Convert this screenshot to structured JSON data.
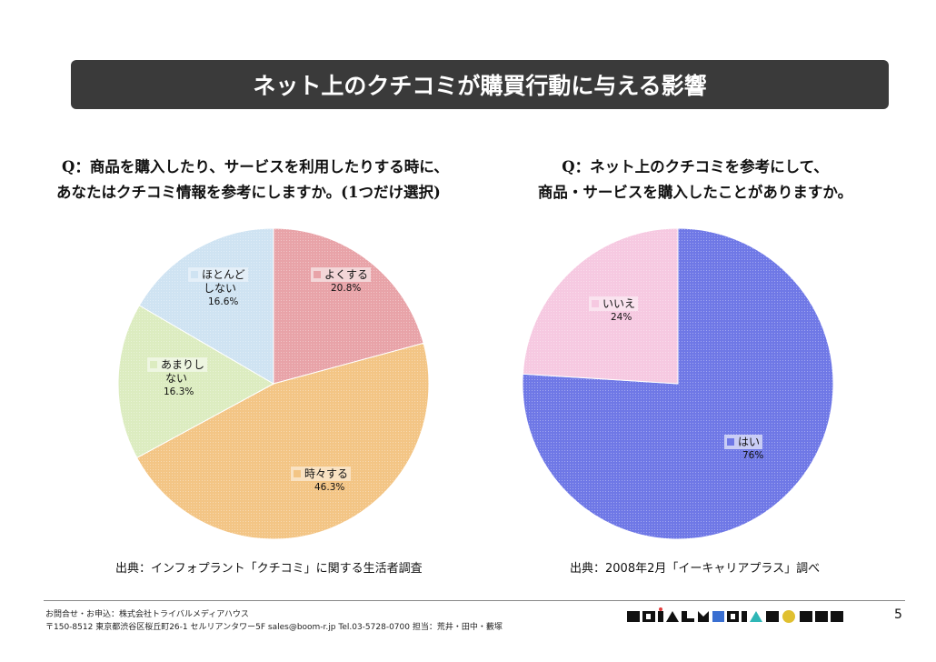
{
  "header": {
    "title": "ネット上のクチコミが購買行動に与える影響"
  },
  "questions": {
    "q1_line1": "Q：商品を購入したり、サービスを利用したりする時に、",
    "q1_line2": "あなたはクチコミ情報を参考にしますか。(1つだけ選択)",
    "q2_line1": "Q：ネット上のクチコミを参考にして、",
    "q2_line2": "商品・サービスを購入したことがありますか。"
  },
  "chart_data": [
    {
      "type": "pie",
      "title": "",
      "slices": [
        {
          "label": "よくする",
          "value": 20.8,
          "label_text": "20.8%",
          "color": "#e8a3a8"
        },
        {
          "label": "時々する",
          "value": 46.3,
          "label_text": "46.3%",
          "color": "#f3c585"
        },
        {
          "label": "あまりしない",
          "value": 16.3,
          "label_text": "16.3%",
          "color": "#dcecc0"
        },
        {
          "label": "ほとんどしない",
          "value": 16.6,
          "label_text": "16.6%",
          "color": "#cfe3f2"
        }
      ],
      "start": "12 o'clock",
      "direction": "clockwise"
    },
    {
      "type": "pie",
      "title": "",
      "slices": [
        {
          "label": "はい",
          "value": 76,
          "label_text": "76%",
          "color": "#6f78e6"
        },
        {
          "label": "いいえ",
          "value": 24,
          "label_text": "24%",
          "color": "#f6c9e1"
        }
      ],
      "start": "12 o'clock",
      "direction": "clockwise"
    }
  ],
  "labels": {
    "yokusuru": {
      "l1": "よくする",
      "pct": "20.8%"
    },
    "tokidoki": {
      "l1": "時々する",
      "pct": "46.3%"
    },
    "amari": {
      "l1": "あまりし",
      "l2": "ない",
      "pct": "16.3%"
    },
    "hotondo": {
      "l1": "ほとんど",
      "l2": "しない",
      "pct": "16.6%"
    },
    "hai": {
      "l1": "はい",
      "pct": "76%"
    },
    "iie": {
      "l1": "いいえ",
      "pct": "24%"
    }
  },
  "sources": {
    "s1": "出典：インフォプラント「クチコミ」に関する生活者調査",
    "s2": "出典：2008年2月「イーキャリアプラス」調べ"
  },
  "footer": {
    "line1": "お問合せ・お申込：株式会社トライバルメディアハウス",
    "line2": "〒150-8512 東京都渋谷区桜丘町26-1 セルリアンタワー5F sales@boom-r.jp Tel.03-5728-0700 担当：荒井・田中・藪塚",
    "page": "5"
  }
}
